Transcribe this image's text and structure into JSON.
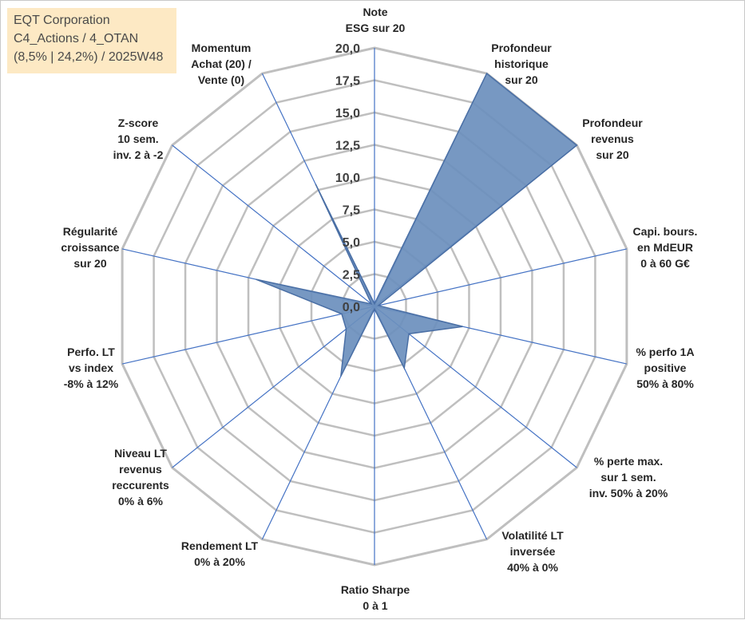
{
  "title_box": {
    "line1": "EQT Corporation",
    "line2": "C4_Actions / 4_OTAN",
    "line3": "(8,5% | 24,2%) / 2025W48"
  },
  "chart_data": {
    "type": "radar",
    "rlim": [
      0,
      20
    ],
    "tick_values": [
      0,
      2.5,
      5,
      7.5,
      10,
      12.5,
      15,
      17.5,
      20
    ],
    "tick_labels": [
      "0,0",
      "2,5",
      "5,0",
      "7,5",
      "10,0",
      "12,5",
      "15,0",
      "17,5",
      "20,0"
    ],
    "axes": [
      {
        "label": [
          "Note",
          "ESG sur 20"
        ],
        "value": 0.2
      },
      {
        "label": [
          "Profondeur",
          "historique",
          "sur 20"
        ],
        "value": 20
      },
      {
        "label": [
          "Profondeur",
          "revenus",
          "sur 20"
        ],
        "value": 20
      },
      {
        "label": [
          "Capi. bours.",
          "en MdEUR",
          "0 à 60 G€"
        ],
        "value": 0.3
      },
      {
        "label": [
          "% perfo 1A",
          "positive",
          "50% à 80%"
        ],
        "value": 7
      },
      {
        "label": [
          "% perte max.",
          "sur 1 sem.",
          "inv. 50% à 20%"
        ],
        "value": 3.4
      },
      {
        "label": [
          "Volatilité LT",
          "inversée",
          "40% à 0%"
        ],
        "value": 5.3
      },
      {
        "label": [
          "Ratio Sharpe",
          "0 à 1"
        ],
        "value": 0.2
      },
      {
        "label": [
          "Rendement LT",
          "0% à 20%"
        ],
        "value": 6
      },
      {
        "label": [
          "Niveau LT",
          "revenus",
          "reccurents",
          "0% à 6%"
        ],
        "value": 2.8
      },
      {
        "label": [
          "Perfo. LT",
          "vs index",
          "-8% à 12%"
        ],
        "value": 2.6
      },
      {
        "label": [
          "Régularité",
          "croissance",
          "sur 20"
        ],
        "value": 9.4
      },
      {
        "label": [
          "Z-score",
          "10 sem.",
          "inv. 2 à -2"
        ],
        "value": 0.3
      },
      {
        "label": [
          "Momentum",
          "Achat (20) /",
          "Vente (0)"
        ],
        "value": 10.5
      }
    ],
    "colors": {
      "fill": "#6b8fbd",
      "stroke": "#4a6fa5",
      "grid": "#bfbfbf",
      "spokes": "#4472c4"
    }
  }
}
